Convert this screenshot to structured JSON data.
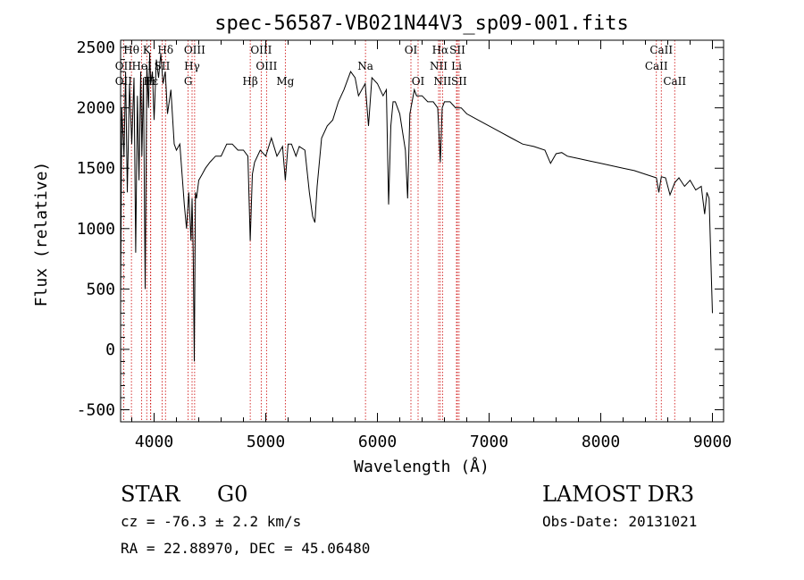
{
  "chart_data": {
    "type": "line",
    "title": "spec-56587-VB021N44V3_sp09-001.fits",
    "xlabel": "Wavelength (Å)",
    "ylabel": "Flux (relative)",
    "xlim": [
      3700,
      9100
    ],
    "ylim": [
      -600,
      2560
    ],
    "xticks": [
      4000,
      5000,
      6000,
      7000,
      8000,
      9000
    ],
    "yticks": [
      -500,
      0,
      500,
      1000,
      1500,
      2000,
      2500
    ],
    "x": [
      3700,
      3710,
      3730,
      3745,
      3760,
      3780,
      3800,
      3820,
      3835,
      3850,
      3865,
      3880,
      3890,
      3905,
      3920,
      3935,
      3950,
      3960,
      3970,
      3985,
      4000,
      4020,
      4040,
      4060,
      4080,
      4100,
      4120,
      4150,
      4180,
      4200,
      4230,
      4250,
      4270,
      4290,
      4310,
      4330,
      4340,
      4350,
      4360,
      4370,
      4380,
      4400,
      4430,
      4460,
      4500,
      4550,
      4600,
      4650,
      4700,
      4750,
      4800,
      4840,
      4861,
      4880,
      4900,
      4950,
      5000,
      5050,
      5100,
      5150,
      5175,
      5200,
      5230,
      5270,
      5300,
      5350,
      5390,
      5420,
      5440,
      5460,
      5500,
      5550,
      5600,
      5650,
      5700,
      5760,
      5800,
      5830,
      5860,
      5890,
      5920,
      5950,
      6000,
      6050,
      6080,
      6100,
      6120,
      6140,
      6160,
      6200,
      6250,
      6270,
      6290,
      6310,
      6330,
      6350,
      6400,
      6450,
      6500,
      6540,
      6563,
      6580,
      6600,
      6650,
      6700,
      6750,
      6800,
      6900,
      7000,
      7100,
      7200,
      7300,
      7400,
      7500,
      7550,
      7600,
      7650,
      7700,
      7800,
      7900,
      8000,
      8100,
      8200,
      8300,
      8400,
      8498,
      8520,
      8542,
      8580,
      8620,
      8662,
      8700,
      8750,
      8800,
      8850,
      8900,
      8930,
      8950,
      8970,
      8990,
      9000
    ],
    "series": [
      {
        "name": "flux",
        "values": [
          400,
          2000,
          1600,
          2300,
          1300,
          2200,
          1700,
          2250,
          800,
          2100,
          1400,
          2300,
          1600,
          2250,
          500,
          2350,
          2000,
          2450,
          2200,
          2300,
          1900,
          2400,
          2250,
          2450,
          2200,
          2300,
          1950,
          2150,
          1700,
          1650,
          1700,
          1450,
          1200,
          1000,
          1300,
          900,
          1250,
          800,
          -100,
          1300,
          1250,
          1400,
          1450,
          1500,
          1550,
          1600,
          1600,
          1700,
          1700,
          1650,
          1650,
          1600,
          900,
          1450,
          1550,
          1650,
          1600,
          1750,
          1600,
          1680,
          1400,
          1700,
          1700,
          1600,
          1680,
          1650,
          1300,
          1100,
          1050,
          1350,
          1750,
          1850,
          1900,
          2050,
          2150,
          2300,
          2250,
          2100,
          2150,
          2200,
          1850,
          2250,
          2200,
          2100,
          2150,
          1200,
          1850,
          2050,
          2050,
          1950,
          1650,
          1250,
          1950,
          2050,
          2150,
          2100,
          2100,
          2050,
          2050,
          2000,
          1550,
          2000,
          2050,
          2050,
          2000,
          2000,
          1950,
          1900,
          1850,
          1800,
          1750,
          1700,
          1680,
          1650,
          1540,
          1620,
          1630,
          1600,
          1580,
          1560,
          1540,
          1520,
          1500,
          1480,
          1450,
          1420,
          1300,
          1430,
          1420,
          1280,
          1380,
          1420,
          1350,
          1400,
          1320,
          1350,
          1120,
          1300,
          1250,
          600,
          300
        ]
      }
    ],
    "lines_top": [
      {
        "label": "Hθ",
        "x": 3797
      },
      {
        "label": "K",
        "x": 3934
      },
      {
        "label": "Hδ",
        "x": 4102
      },
      {
        "label": "OIII",
        "x": 4363
      },
      {
        "label": "OIII",
        "x": 4959
      },
      {
        "label": "OI",
        "x": 6300
      },
      {
        "label": "Hα",
        "x": 6563
      },
      {
        "label": "SII",
        "x": 6716
      },
      {
        "label": "CaII",
        "x": 8542
      }
    ],
    "lines_mid": [
      {
        "label": "OII",
        "x": 3727
      },
      {
        "label": "HeI",
        "x": 3889
      },
      {
        "label": "SII",
        "x": 4072
      },
      {
        "label": "Hγ",
        "x": 4340
      },
      {
        "label": "OIII",
        "x": 5007
      },
      {
        "label": "Na",
        "x": 5893
      },
      {
        "label": "NII",
        "x": 6548
      },
      {
        "label": "Li",
        "x": 6708
      },
      {
        "label": "CaII",
        "x": 8498
      }
    ],
    "lines_low": [
      {
        "label": "OII",
        "x": 3727
      },
      {
        "label": "Hε",
        "x": 3970
      },
      {
        "label": "H",
        "x": 3968
      },
      {
        "label": "G",
        "x": 4305
      },
      {
        "label": "Hβ",
        "x": 4861
      },
      {
        "label": "Mg",
        "x": 5175
      },
      {
        "label": "OI",
        "x": 6364
      },
      {
        "label": "NII",
        "x": 6583
      },
      {
        "label": "SII",
        "x": 6731
      },
      {
        "label": "CaII",
        "x": 8662
      }
    ],
    "line_color": "#cc0000"
  },
  "info": {
    "classification": "STAR",
    "subclass": "G0",
    "survey": "LAMOST DR3",
    "cz": "cz = -76.3 ± 2.2 km/s",
    "obs_date": "Obs-Date: 20131021",
    "coords": "RA =  22.88970, DEC =  45.06480"
  }
}
